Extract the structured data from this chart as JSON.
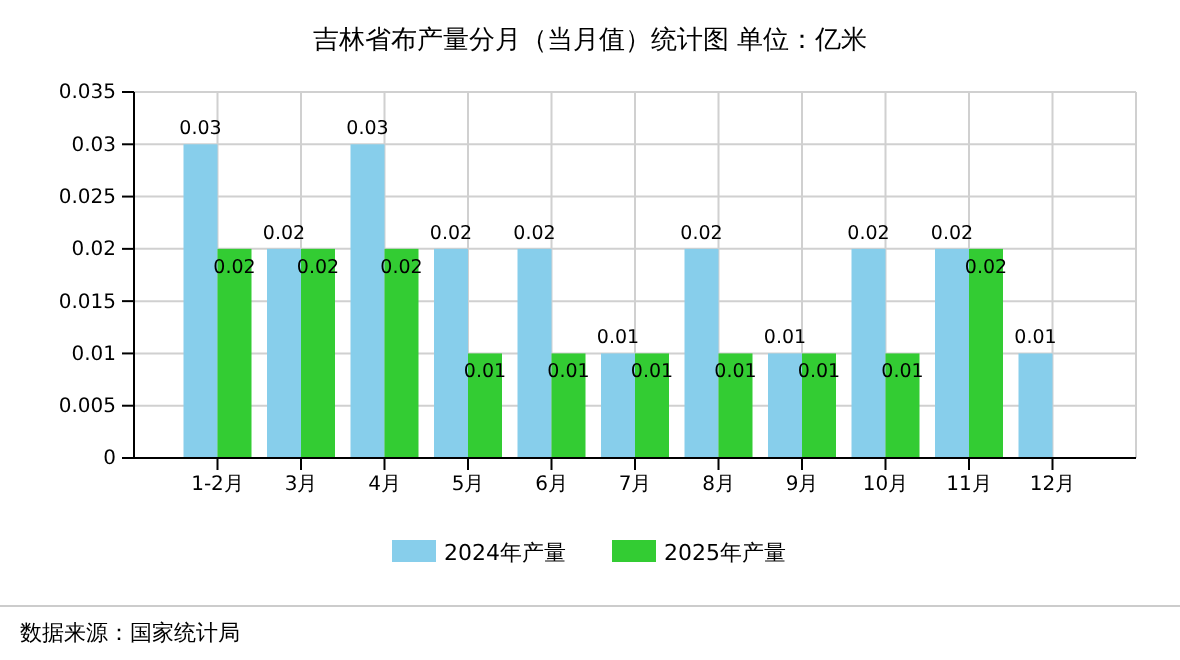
{
  "chart_data": {
    "type": "bar",
    "title": "吉林省布产量分月（当月值）统计图 单位：亿米",
    "categories": [
      "1-2月",
      "3月",
      "4月",
      "5月",
      "6月",
      "7月",
      "8月",
      "9月",
      "10月",
      "11月",
      "12月"
    ],
    "series": [
      {
        "name": "2024年产量",
        "color": "#87ceeb",
        "values": [
          0.03,
          0.02,
          0.03,
          0.02,
          0.02,
          0.01,
          0.02,
          0.01,
          0.02,
          0.02,
          0.01
        ]
      },
      {
        "name": "2025年产量",
        "color": "#33cc33",
        "values": [
          0.02,
          0.02,
          0.02,
          0.01,
          0.01,
          0.01,
          0.01,
          0.01,
          0.01,
          0.02,
          null
        ]
      }
    ],
    "ylim": [
      0,
      0.035
    ],
    "yticks": [
      0,
      0.005,
      0.01,
      0.015,
      0.02,
      0.025,
      0.03,
      0.035
    ],
    "grid": true,
    "legend": "bottom",
    "data_labels": true,
    "annotations": [
      "数据来源：国家统计局"
    ]
  }
}
